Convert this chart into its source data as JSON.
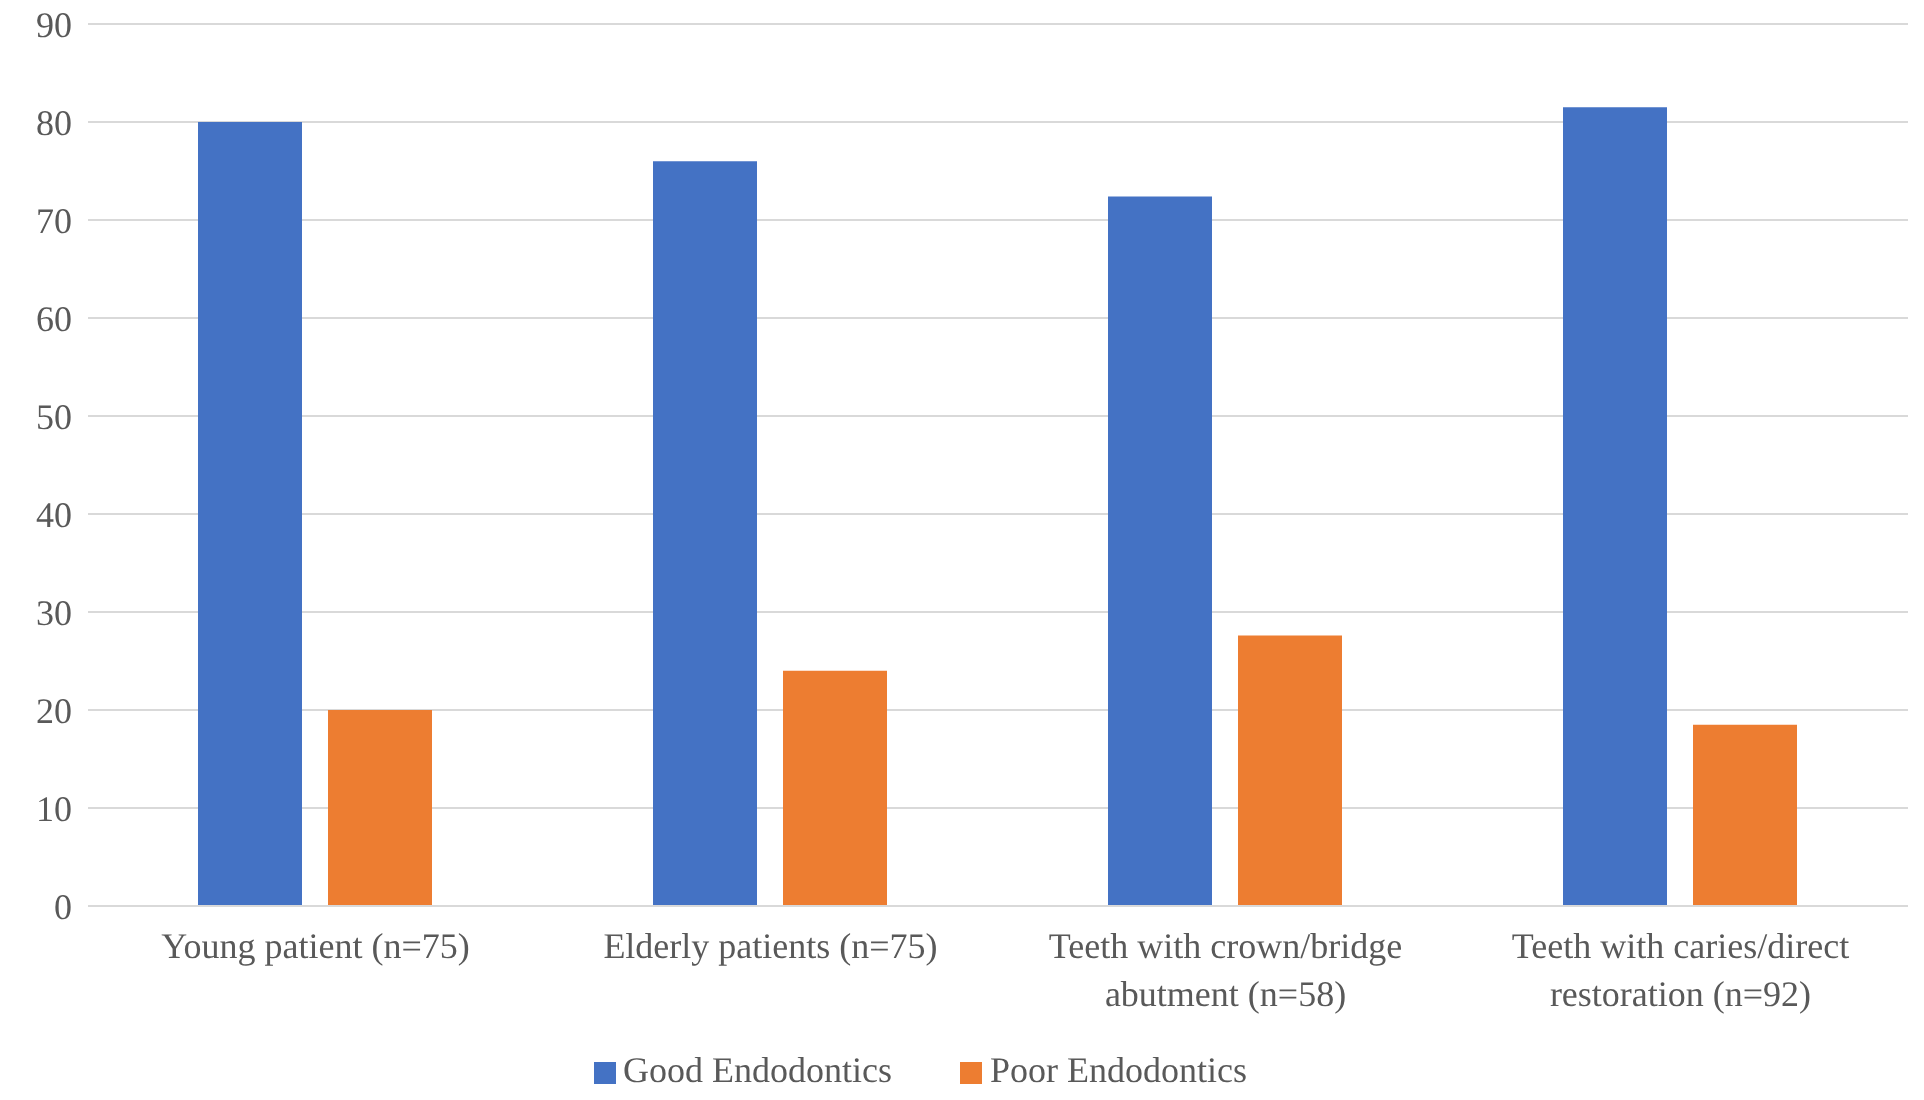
{
  "chart_data": {
    "type": "bar",
    "categories": [
      "Young patient (n=75)",
      "Elderly patients (n=75)",
      "Teeth with crown/bridge abutment (n=58)",
      "Teeth with caries/direct restoration (n=92)"
    ],
    "series": [
      {
        "name": "Good Endodontics",
        "color": "#4472c4",
        "values": [
          80,
          76,
          72.4,
          81.5
        ]
      },
      {
        "name": "Poor Endodontics",
        "color": "#ed7d31",
        "values": [
          20,
          24,
          27.6,
          18.5
        ]
      }
    ],
    "ylim": [
      0,
      90
    ],
    "yticks": [
      0,
      10,
      20,
      30,
      40,
      50,
      60,
      70,
      80,
      90
    ],
    "grid": "y",
    "legend": "bottom"
  }
}
